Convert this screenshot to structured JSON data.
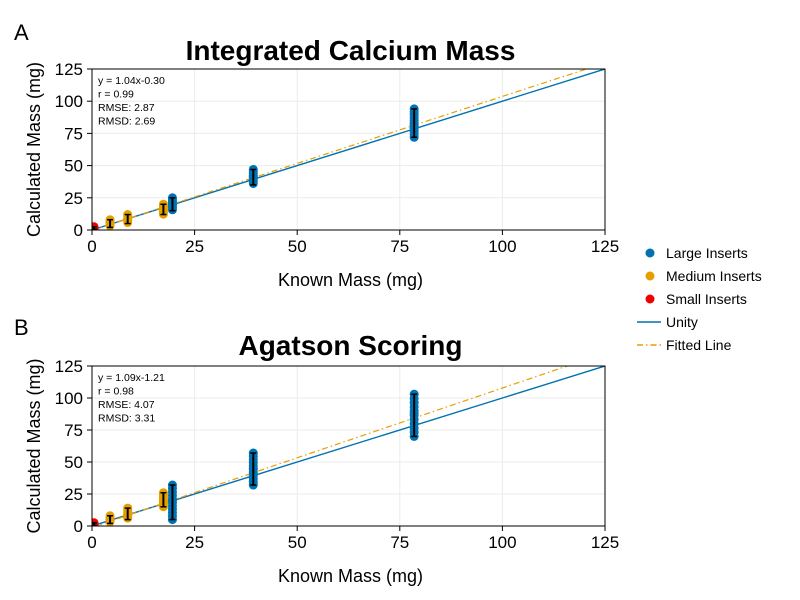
{
  "colors": {
    "large": "#0072b2",
    "medium": "#e69f00",
    "small": "#ee0000",
    "unity": "#0072b2",
    "fitted": "#e69f00",
    "errorbar": "#000000",
    "grid": "#ebebeb"
  },
  "legend": {
    "large": "Large Inserts",
    "medium": "Medium Inserts",
    "small": "Small Inserts",
    "unity": "Unity",
    "fitted": "Fitted Line"
  },
  "chart_data": [
    {
      "panel": "A",
      "type": "scatter",
      "title": "Integrated Calcium Mass",
      "xlabel": "Known Mass (mg)",
      "ylabel": "Calculated Mass (mg)",
      "xlim": [
        0,
        125
      ],
      "ylim": [
        0,
        125
      ],
      "xticks": [
        "0",
        "25",
        "50",
        "75",
        "100",
        "125"
      ],
      "yticks": [
        "0",
        "25",
        "50",
        "75",
        "100",
        "125"
      ],
      "grid": true,
      "legend_position": "right",
      "stats": [
        "y = 1.04x-0.30",
        "r = 0.99",
        "RMSE: 2.87",
        "RMSD: 2.69"
      ],
      "fit": {
        "slope": 1.04,
        "intercept": -0.3
      },
      "series": [
        {
          "name": "Large Inserts",
          "group": "large",
          "x": [
            19.6,
            39.3,
            78.5
          ],
          "y": [
            20,
            41.5,
            82
          ],
          "err": [
            [
              15,
              25
            ],
            [
              35,
              47
            ],
            [
              72,
              94
            ]
          ]
        },
        {
          "name": "Medium Inserts",
          "group": "medium",
          "x": [
            4.4,
            8.7,
            17.4
          ],
          "y": [
            5,
            8.5,
            16
          ],
          "err": [
            [
              2,
              8
            ],
            [
              5,
              12
            ],
            [
              12,
              20
            ]
          ]
        },
        {
          "name": "Small Inserts",
          "group": "small",
          "x": [
            0.5
          ],
          "y": [
            1.5
          ],
          "err": [
            [
              0.5,
              2.5
            ]
          ]
        }
      ]
    },
    {
      "panel": "B",
      "type": "scatter",
      "title": "Agatson Scoring",
      "xlabel": "Known Mass (mg)",
      "ylabel": "Calculated Mass (mg)",
      "xlim": [
        0,
        125
      ],
      "ylim": [
        0,
        125
      ],
      "xticks": [
        "0",
        "25",
        "50",
        "75",
        "100",
        "125"
      ],
      "yticks": [
        "0",
        "25",
        "50",
        "75",
        "100",
        "125"
      ],
      "grid": true,
      "legend_position": "right",
      "stats": [
        "y = 1.09x-1.21",
        "r = 0.98",
        "RMSE: 4.07",
        "RMSD: 3.31"
      ],
      "fit": {
        "slope": 1.09,
        "intercept": -1.21
      },
      "series": [
        {
          "name": "Large Inserts",
          "group": "large",
          "x": [
            19.6,
            39.3,
            78.5
          ],
          "y": [
            20,
            45,
            88
          ],
          "err": [
            [
              5,
              32
            ],
            [
              32,
              57
            ],
            [
              70,
              103
            ]
          ]
        },
        {
          "name": "Medium Inserts",
          "group": "medium",
          "x": [
            4.4,
            8.7,
            17.4
          ],
          "y": [
            5,
            9,
            20
          ],
          "err": [
            [
              2,
              8
            ],
            [
              5,
              14
            ],
            [
              15,
              26
            ]
          ]
        },
        {
          "name": "Small Inserts",
          "group": "small",
          "x": [
            0.5
          ],
          "y": [
            1.5
          ],
          "err": [
            [
              0.5,
              2.5
            ]
          ]
        }
      ]
    }
  ]
}
